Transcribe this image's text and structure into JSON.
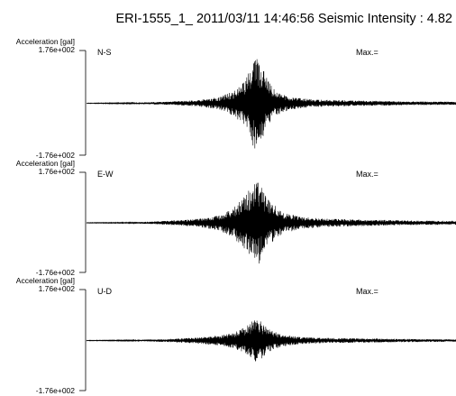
{
  "title": "ERI-1555_1_  2011/03/11 14:46:56  Seismic Intensity : 4.82",
  "chart_data": [
    {
      "type": "line",
      "component": "N-S",
      "ylabel": "Acceleration [gal]",
      "y_top_tick": "1.76e+002",
      "y_bottom_tick": "-1.76e+002",
      "ylim": [
        -176,
        176
      ],
      "max_label": "Max.=",
      "peak_fraction": 0.92,
      "envelope": [
        [
          0.0,
          0.005
        ],
        [
          0.12,
          0.01
        ],
        [
          0.22,
          0.03
        ],
        [
          0.3,
          0.06
        ],
        [
          0.36,
          0.12
        ],
        [
          0.4,
          0.25
        ],
        [
          0.43,
          0.45
        ],
        [
          0.445,
          0.75
        ],
        [
          0.46,
          0.92
        ],
        [
          0.475,
          0.7
        ],
        [
          0.49,
          0.45
        ],
        [
          0.51,
          0.25
        ],
        [
          0.55,
          0.12
        ],
        [
          0.62,
          0.07
        ],
        [
          0.75,
          0.05
        ],
        [
          0.88,
          0.035
        ],
        [
          1.0,
          0.03
        ]
      ]
    },
    {
      "type": "line",
      "component": "E-W",
      "ylabel": "Acceleration [gal]",
      "y_top_tick": "1.76e+002",
      "y_bottom_tick": "-1.76e+002",
      "ylim": [
        -176,
        176
      ],
      "max_label": "Max.=",
      "peak_fraction": 0.9,
      "envelope": [
        [
          0.0,
          0.005
        ],
        [
          0.12,
          0.01
        ],
        [
          0.22,
          0.04
        ],
        [
          0.3,
          0.08
        ],
        [
          0.36,
          0.16
        ],
        [
          0.4,
          0.32
        ],
        [
          0.43,
          0.55
        ],
        [
          0.45,
          0.78
        ],
        [
          0.465,
          0.9
        ],
        [
          0.48,
          0.65
        ],
        [
          0.5,
          0.42
        ],
        [
          0.53,
          0.22
        ],
        [
          0.58,
          0.12
        ],
        [
          0.66,
          0.08
        ],
        [
          0.78,
          0.06
        ],
        [
          0.9,
          0.045
        ],
        [
          1.0,
          0.04
        ]
      ]
    },
    {
      "type": "line",
      "component": "U-D",
      "ylabel": "Acceleration [gal]",
      "y_top_tick": "1.76e+002",
      "y_bottom_tick": "-1.76e+002",
      "ylim": [
        -176,
        176
      ],
      "max_label": "Max.=",
      "peak_fraction": 0.45,
      "envelope": [
        [
          0.0,
          0.005
        ],
        [
          0.12,
          0.01
        ],
        [
          0.22,
          0.03
        ],
        [
          0.3,
          0.06
        ],
        [
          0.36,
          0.1
        ],
        [
          0.4,
          0.16
        ],
        [
          0.43,
          0.27
        ],
        [
          0.45,
          0.4
        ],
        [
          0.465,
          0.45
        ],
        [
          0.48,
          0.32
        ],
        [
          0.5,
          0.2
        ],
        [
          0.53,
          0.12
        ],
        [
          0.58,
          0.07
        ],
        [
          0.66,
          0.05
        ],
        [
          0.78,
          0.04
        ],
        [
          0.9,
          0.03
        ],
        [
          1.0,
          0.025
        ]
      ]
    }
  ]
}
